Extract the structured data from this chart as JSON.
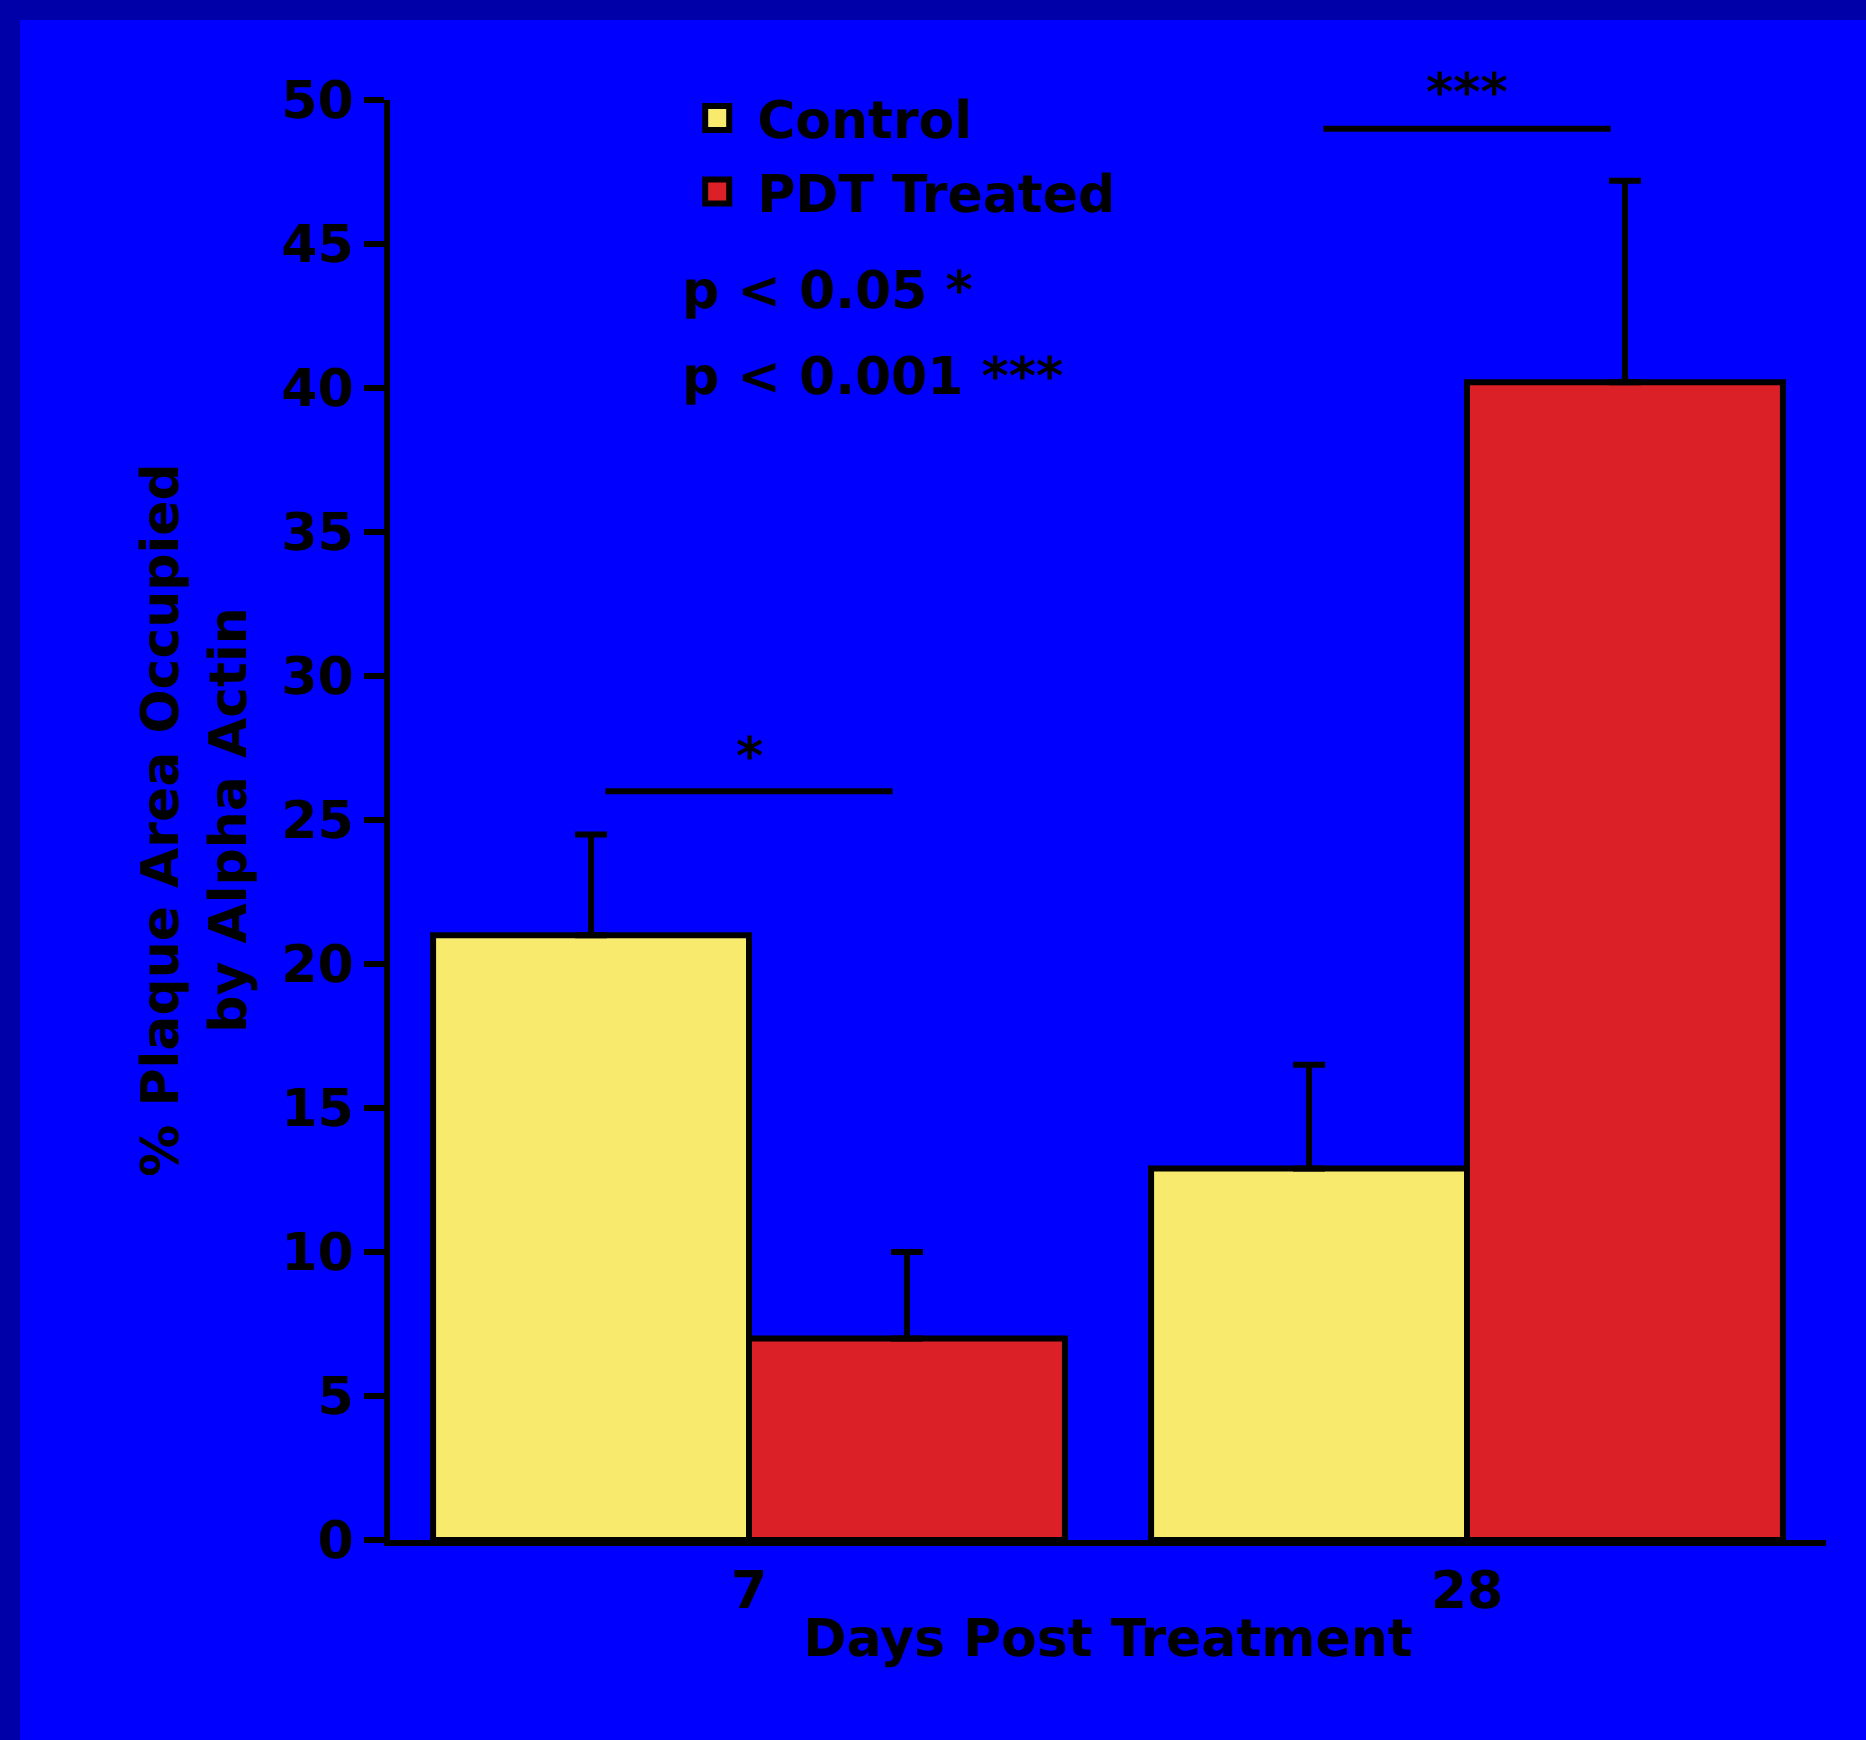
{
  "chart_data": {
    "type": "bar",
    "xlabel": "Days Post Treatment",
    "ylabel": "% Plaque Area Occupied\nby Alpha Actin",
    "categories": [
      "7",
      "28"
    ],
    "series": [
      {
        "name": "Control",
        "color": "#f7ea6c",
        "values": [
          21,
          12.9
        ],
        "errors": [
          [
            21,
            24.5
          ],
          [
            12.9,
            16.5
          ]
        ]
      },
      {
        "name": "PDT Treated",
        "color": "#dc2027",
        "values": [
          7,
          40.2
        ],
        "errors": [
          [
            7,
            10
          ],
          [
            40.2,
            47.2
          ]
        ]
      }
    ],
    "ylim": [
      0,
      50
    ],
    "yticks": [
      0,
      5,
      10,
      15,
      20,
      25,
      30,
      35,
      40,
      45,
      50
    ],
    "grid": false,
    "legend": "top left",
    "annotations": [
      "p < 0.05 *",
      "p < 0.001 ***",
      "*",
      "***"
    ]
  }
}
